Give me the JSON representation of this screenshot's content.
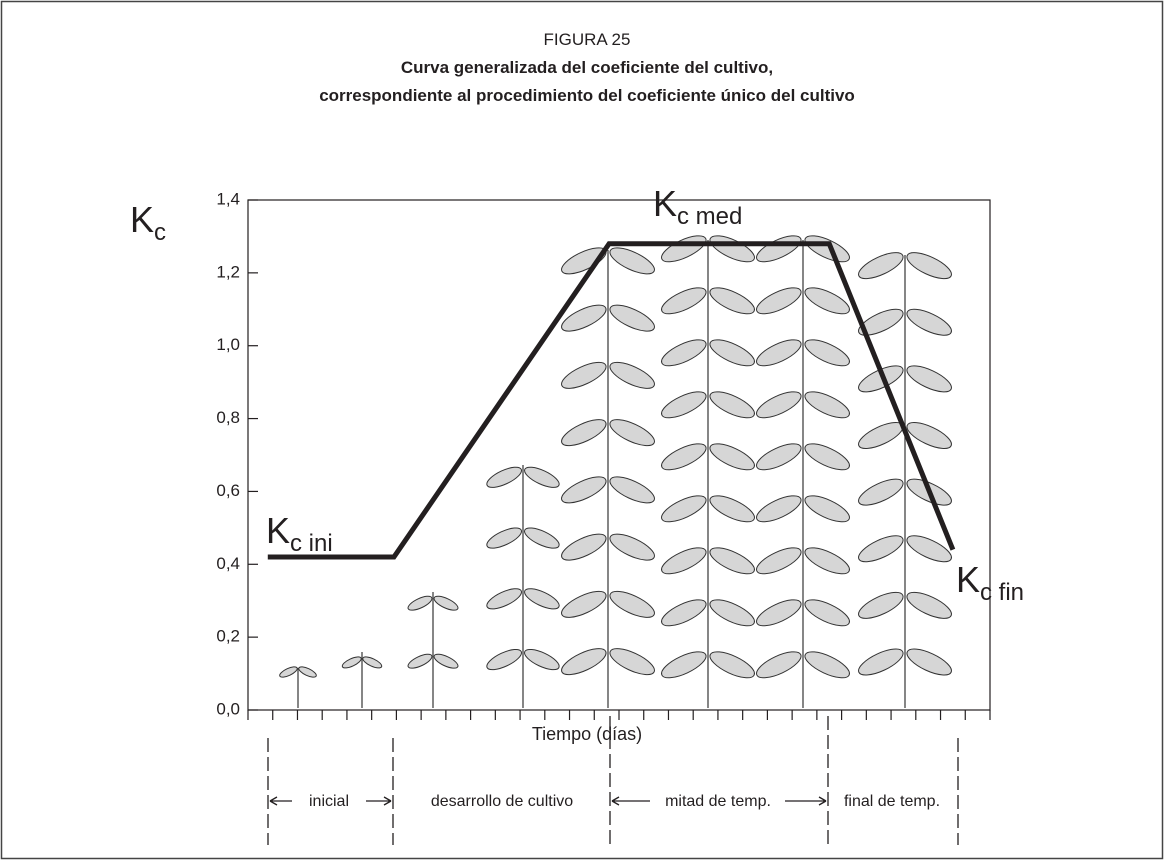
{
  "chart_data": {
    "type": "line",
    "title": "FIGURA 25",
    "subtitle": [
      "Curva generalizada del coeficiente del cultivo,",
      "correspondiente al procedimiento del coeficiente único del cultivo"
    ],
    "y_label": {
      "main": "K",
      "sub": "c"
    },
    "x_label": "Tiempo (días)",
    "x": [
      0.8,
      5.9,
      14.6,
      23.5,
      28.5
    ],
    "values": [
      0.42,
      0.42,
      1.28,
      1.28,
      0.44
    ],
    "color": "#231f20",
    "xlim": [
      0,
      30
    ],
    "xticks": [
      0,
      1,
      2,
      3,
      4,
      5,
      6,
      7,
      8,
      9,
      10,
      11,
      12,
      13,
      14,
      15,
      16,
      17,
      18,
      19,
      20,
      21,
      22,
      23,
      24,
      25,
      26,
      27,
      28,
      29,
      30
    ],
    "ylim": [
      0,
      1.4
    ],
    "yticks": [
      {
        "value": 0,
        "label": "0,0"
      },
      {
        "value": 0.2,
        "label": "0,2"
      },
      {
        "value": 0.4,
        "label": "0,4"
      },
      {
        "value": 0.6,
        "label": "0,6"
      },
      {
        "value": 0.8,
        "label": "0,8"
      },
      {
        "value": 1.0,
        "label": "1,0"
      },
      {
        "value": 1.2,
        "label": "1,2"
      },
      {
        "value": 1.4,
        "label": "1,4"
      }
    ],
    "annotations": [
      {
        "main": "K",
        "sub": "c ini"
      },
      {
        "main": "K",
        "sub": "c med"
      },
      {
        "main": "K",
        "sub": "c fin"
      }
    ],
    "stages": [
      "inicial",
      "desarrollo de cultivo",
      "mitad de temp.",
      "final de temp."
    ]
  }
}
